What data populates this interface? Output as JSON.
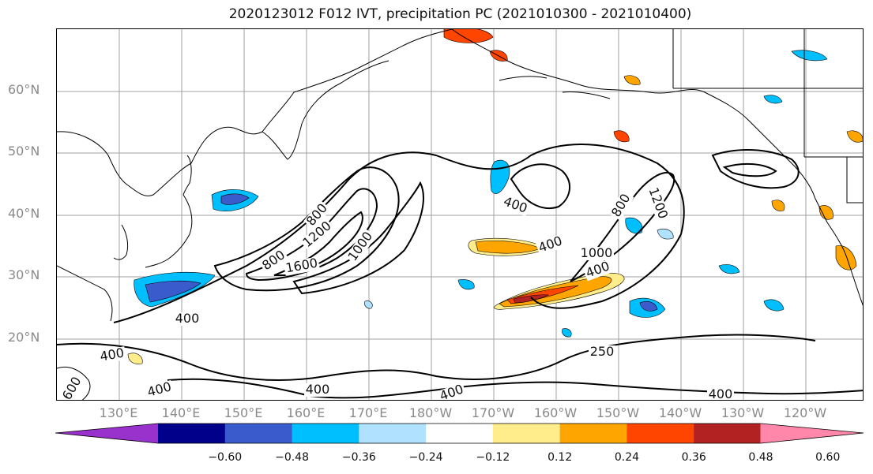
{
  "title": "2020123012 F012 IVT, precipitation PC (2021010300 - 2021010400)",
  "lat_labels": [
    "60°N",
    "50°N",
    "40°N",
    "30°N",
    "20°N"
  ],
  "lon_labels": [
    "130°E",
    "140°E",
    "150°E",
    "160°E",
    "170°E",
    "180°W",
    "170°W",
    "160°W",
    "150°W",
    "140°W",
    "130°W",
    "120°W"
  ],
  "colorbar": {
    "tick_labels": [
      "−0.60",
      "−0.48",
      "−0.36",
      "−0.24",
      "−0.12",
      "0.12",
      "0.24",
      "0.36",
      "0.48",
      "0.60"
    ],
    "colors": [
      "#9932CC",
      "#00008B",
      "#3A5BCC",
      "#00BFFF",
      "#B0E2FF",
      "#FFFFFF",
      "#FFEC8B",
      "#FFA500",
      "#FF4500",
      "#B22222",
      "#FF88AA"
    ]
  },
  "contour_labels": [
    "400",
    "1000",
    "1600",
    "800",
    "1200",
    "800",
    "400",
    "400",
    "1000",
    "800",
    "400",
    "1200",
    "400",
    "400",
    "250",
    "400",
    "400",
    "400",
    "600"
  ],
  "colors": {
    "grid": "#a0a0a0",
    "coast": "#000000",
    "contour": "#000000",
    "label": "#8a8a8a"
  }
}
